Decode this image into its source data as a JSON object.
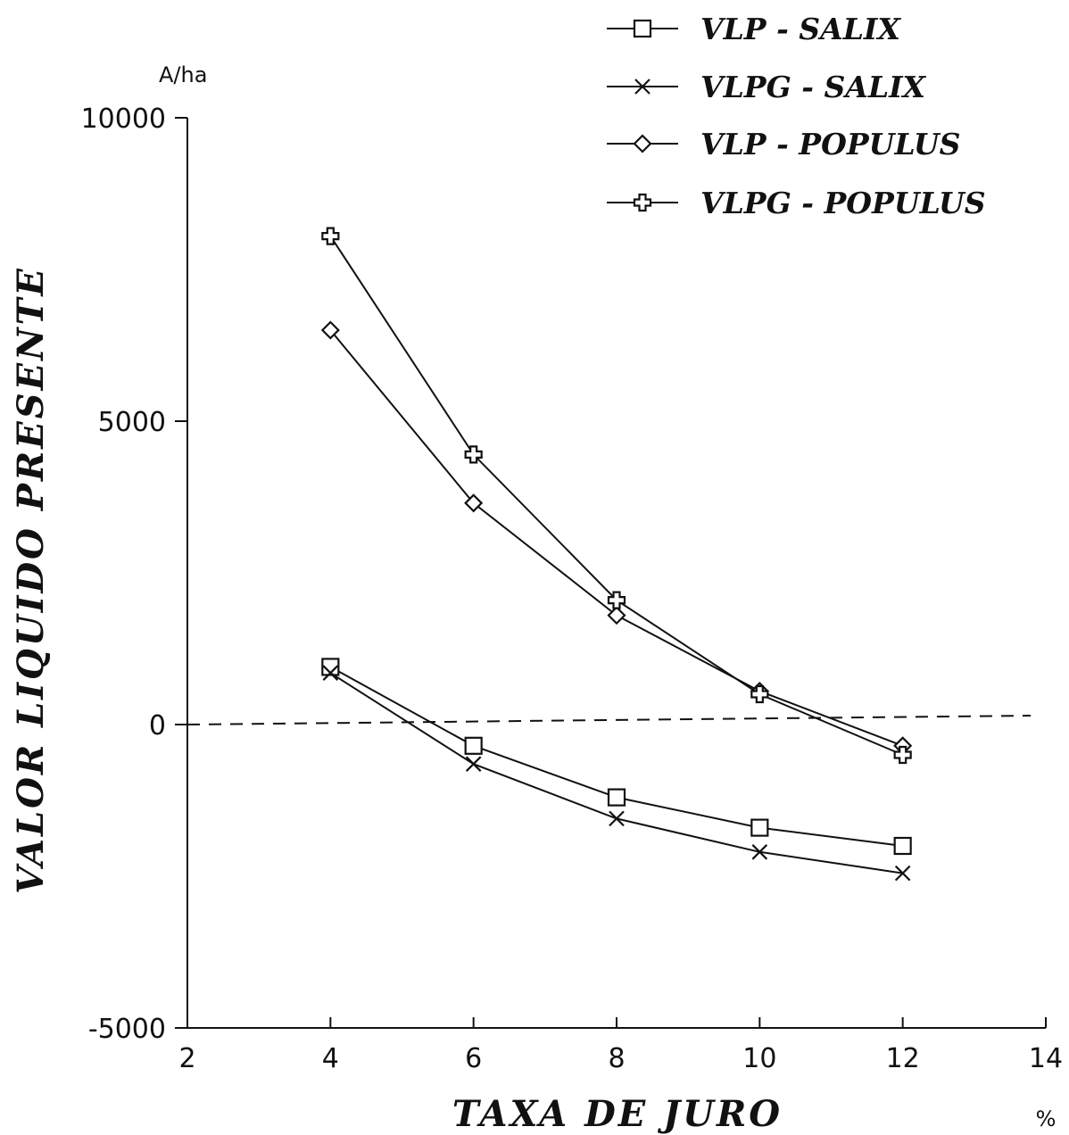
{
  "chart_data": {
    "type": "line",
    "xlabel": "TAXA DE JURO",
    "ylabel": "VALOR LIQUIDO PRESENTE",
    "x_unit": "%",
    "y_unit": "A/ha",
    "xlim": [
      2,
      14
    ],
    "ylim": [
      -5000,
      10000
    ],
    "x_ticks": [
      "2",
      "4",
      "6",
      "8",
      "10",
      "12",
      "14"
    ],
    "y_ticks": [
      "10000",
      "5000",
      "0",
      "-5000"
    ],
    "grid": false,
    "reference_line": {
      "y": 0,
      "style": "dashed"
    },
    "legend_position": "top-right",
    "series": [
      {
        "name": "VLP - SALIX",
        "marker": "square",
        "x": [
          4,
          6,
          8,
          10,
          12
        ],
        "y": [
          950,
          -350,
          -1200,
          -1700,
          -2000
        ]
      },
      {
        "name": "VLPG - SALIX",
        "marker": "x",
        "x": [
          4,
          6,
          8,
          10,
          12
        ],
        "y": [
          850,
          -650,
          -1550,
          -2100,
          -2450
        ]
      },
      {
        "name": "VLP - POPULUS",
        "marker": "diamond",
        "x": [
          4,
          6,
          8,
          10,
          12
        ],
        "y": [
          6500,
          3650,
          1800,
          550,
          -350
        ]
      },
      {
        "name": "VLPG - POPULUS",
        "marker": "plus",
        "x": [
          4,
          6,
          8,
          10,
          12
        ],
        "y": [
          8050,
          4450,
          2050,
          500,
          -500
        ]
      }
    ]
  }
}
